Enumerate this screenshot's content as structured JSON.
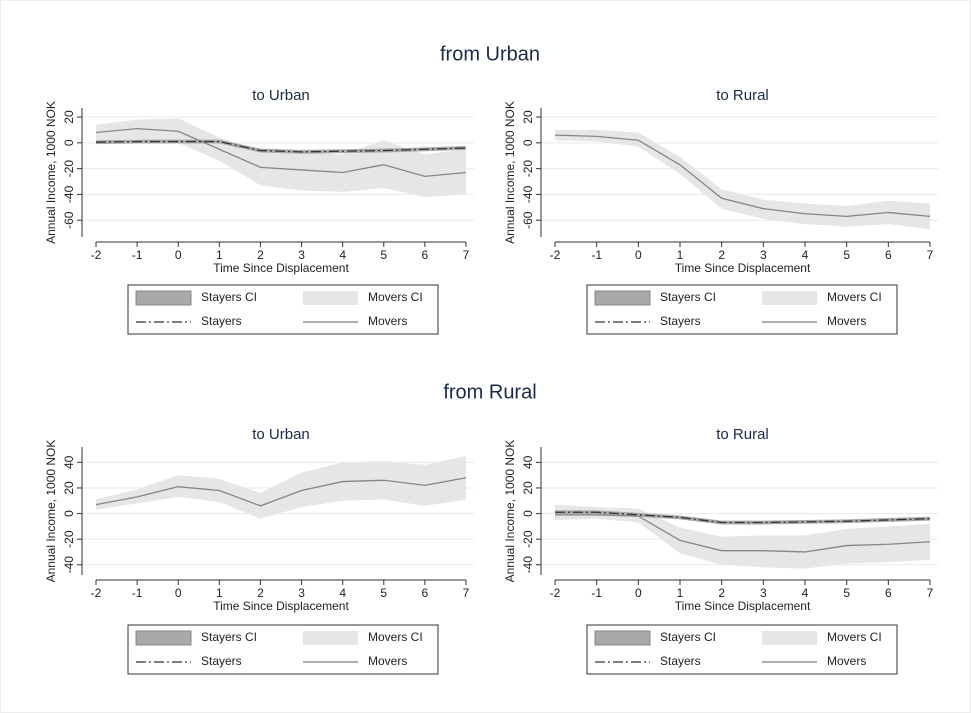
{
  "section_titles": [
    "from Urban",
    "from Rural"
  ],
  "chart_data": [
    {
      "type": "line",
      "title": "to Urban",
      "xlabel": "Time Since Displacement",
      "ylabel": "Annual Income, 1000 NOK",
      "x": [
        -2,
        -1,
        0,
        1,
        2,
        3,
        4,
        5,
        6,
        7
      ],
      "xlim": [
        -2,
        7
      ],
      "xticks": [
        -2,
        -1,
        0,
        1,
        2,
        3,
        4,
        5,
        6,
        7
      ],
      "ylim": [
        -73,
        27
      ],
      "yticks": [
        -60,
        -40,
        -20,
        0,
        20
      ],
      "grid": true,
      "series": [
        {
          "name": "Stayers CI",
          "color": "#a9a9a9",
          "lower": [
            -1,
            -0.5,
            -0.5,
            -0.5,
            -7.5,
            -8.5,
            -8,
            -7.5,
            -6.5,
            -5.5
          ],
          "upper": [
            2,
            2.5,
            2.5,
            2.5,
            -4.5,
            -5.5,
            -5,
            -4.5,
            -3.5,
            -2.5
          ]
        },
        {
          "name": "Movers CI",
          "color": "#e6e6e6",
          "lower": [
            2,
            3,
            0,
            -14,
            -33,
            -37,
            -38,
            -35,
            -42,
            -40
          ],
          "upper": [
            14,
            18,
            19,
            4,
            -6,
            -7,
            -9,
            2,
            -9,
            -5
          ]
        },
        {
          "name": "Stayers",
          "color": "#333333",
          "dash": "10 3 2 3",
          "values": [
            0.5,
            1,
            1,
            1,
            -6,
            -7,
            -6.5,
            -6,
            -5,
            -4
          ]
        },
        {
          "name": "Movers",
          "color": "#858585",
          "values": [
            8,
            11,
            9,
            -5,
            -19,
            -21,
            -23,
            -17,
            -26,
            -23
          ]
        }
      ]
    },
    {
      "type": "line",
      "title": "to Rural",
      "xlabel": "Time Since Displacement",
      "ylabel": "Annual Income, 1000 NOK",
      "x": [
        -2,
        -1,
        0,
        1,
        2,
        3,
        4,
        5,
        6,
        7
      ],
      "xlim": [
        -2,
        7
      ],
      "xticks": [
        -2,
        -1,
        0,
        1,
        2,
        3,
        4,
        5,
        6,
        7
      ],
      "ylim": [
        -73,
        27
      ],
      "yticks": [
        -60,
        -40,
        -20,
        0,
        20
      ],
      "grid": true,
      "series": [
        {
          "name": "Stayers CI",
          "color": "#a9a9a9",
          "lower": [
            null,
            null,
            null,
            null,
            null,
            null,
            null,
            null,
            null,
            null
          ],
          "upper": [
            null,
            null,
            null,
            null,
            null,
            null,
            null,
            null,
            null,
            null
          ]
        },
        {
          "name": "Movers CI",
          "color": "#e6e6e6",
          "lower": [
            2,
            1,
            -3,
            -24,
            -51,
            -59,
            -63,
            -65,
            -63,
            -67
          ],
          "upper": [
            10,
            10,
            8,
            -11,
            -36,
            -44,
            -47,
            -49,
            -45,
            -47
          ]
        },
        {
          "name": "Stayers",
          "color": "#333333",
          "dash": "10 3 2 3",
          "values": [
            null,
            null,
            null,
            null,
            null,
            null,
            null,
            null,
            null,
            null
          ]
        },
        {
          "name": "Movers",
          "color": "#858585",
          "values": [
            6,
            5,
            2,
            -17,
            -43,
            -51,
            -55,
            -57,
            -54,
            -57
          ]
        }
      ]
    },
    {
      "type": "line",
      "title": "to Urban",
      "xlabel": "Time Since Displacement",
      "ylabel": "Annual Income, 1000 NOK",
      "x": [
        -2,
        -1,
        0,
        1,
        2,
        3,
        4,
        5,
        6,
        7
      ],
      "xlim": [
        -2,
        7
      ],
      "xticks": [
        -2,
        -1,
        0,
        1,
        2,
        3,
        4,
        5,
        6,
        7
      ],
      "ylim": [
        -48,
        52
      ],
      "yticks": [
        -40,
        -20,
        0,
        20,
        40
      ],
      "grid": true,
      "series": [
        {
          "name": "Stayers CI",
          "color": "#a9a9a9",
          "lower": [
            null,
            null,
            null,
            null,
            null,
            null,
            null,
            null,
            null,
            null
          ],
          "upper": [
            null,
            null,
            null,
            null,
            null,
            null,
            null,
            null,
            null,
            null
          ]
        },
        {
          "name": "Movers CI",
          "color": "#e6e6e6",
          "lower": [
            3,
            8,
            13,
            9,
            -4,
            5,
            10,
            11,
            6,
            11
          ],
          "upper": [
            11,
            19,
            30,
            27,
            16,
            32,
            40,
            41,
            38,
            45
          ]
        },
        {
          "name": "Stayers",
          "color": "#333333",
          "dash": "10 3 2 3",
          "values": [
            null,
            null,
            null,
            null,
            null,
            null,
            null,
            null,
            null,
            null
          ]
        },
        {
          "name": "Movers",
          "color": "#858585",
          "values": [
            7,
            13,
            21,
            18,
            6,
            18,
            25,
            26,
            22,
            28
          ]
        }
      ]
    },
    {
      "type": "line",
      "title": "to Rural",
      "xlabel": "Time Since Displacement",
      "ylabel": "Annual Income, 1000 NOK",
      "x": [
        -2,
        -1,
        0,
        1,
        2,
        3,
        4,
        5,
        6,
        7
      ],
      "xlim": [
        -2,
        7
      ],
      "xticks": [
        -2,
        -1,
        0,
        1,
        2,
        3,
        4,
        5,
        6,
        7
      ],
      "ylim": [
        -48,
        52
      ],
      "yticks": [
        -40,
        -20,
        0,
        20,
        40
      ],
      "grid": true,
      "series": [
        {
          "name": "Stayers CI",
          "color": "#a9a9a9",
          "lower": [
            -0.5,
            -0.5,
            -2.5,
            -4.5,
            -8.5,
            -8.5,
            -8,
            -7.5,
            -6.5,
            -5.5
          ],
          "upper": [
            2.5,
            2.5,
            0.5,
            -1.5,
            -5.5,
            -5.5,
            -5,
            -4.5,
            -3.5,
            -2.5
          ]
        },
        {
          "name": "Movers CI",
          "color": "#e6e6e6",
          "lower": [
            -5,
            -4,
            -7,
            -31,
            -40,
            -42,
            -43,
            -39,
            -38,
            -36
          ],
          "upper": [
            7,
            5,
            4,
            -11,
            -18,
            -17,
            -17,
            -12,
            -10,
            -8
          ]
        },
        {
          "name": "Stayers",
          "color": "#333333",
          "dash": "10 3 2 3",
          "values": [
            1,
            1,
            -1,
            -3,
            -7,
            -7,
            -6.5,
            -6,
            -5,
            -4
          ]
        },
        {
          "name": "Movers",
          "color": "#858585",
          "values": [
            -1,
            -1,
            -2,
            -21,
            -29,
            -29,
            -30,
            -25,
            -24,
            -22
          ]
        }
      ]
    }
  ]
}
